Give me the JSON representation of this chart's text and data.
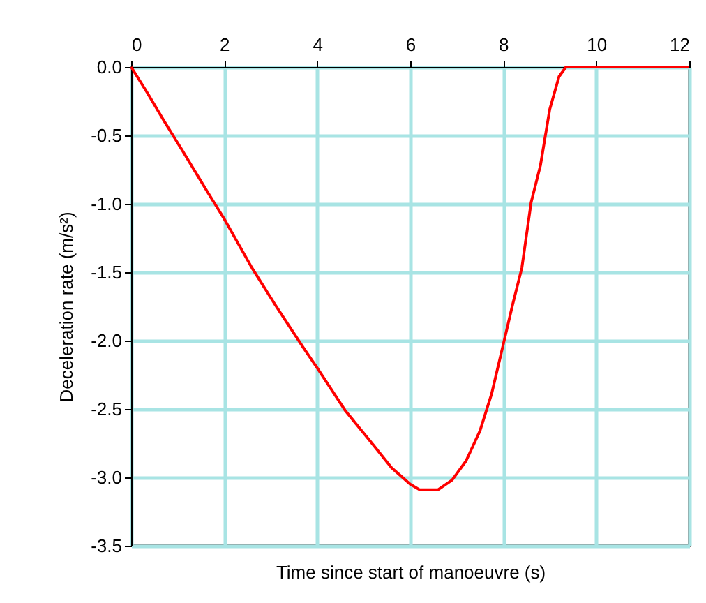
{
  "chart_data": {
    "type": "line",
    "xlabel": "Time since start of manoeuvre (s)",
    "ylabel": "Deceleration rate (m/s²)",
    "x": [
      0,
      0.35,
      0.7,
      1.1,
      1.6,
      2.0,
      2.6,
      3.1,
      3.7,
      4.0,
      4.6,
      5.2,
      5.6,
      6.0,
      6.2,
      6.6,
      6.9,
      7.2,
      7.5,
      7.75,
      8.0,
      8.2,
      8.4,
      8.6,
      8.8,
      9.0,
      9.2,
      9.35,
      12
    ],
    "series": [
      {
        "color": "#ff0000",
        "values": [
          0,
          -0.19,
          -0.39,
          -0.61,
          -0.89,
          -1.11,
          -1.47,
          -1.74,
          -2.05,
          -2.2,
          -2.51,
          -2.76,
          -2.93,
          -3.05,
          -3.09,
          -3.09,
          -3.02,
          -2.88,
          -2.66,
          -2.39,
          -2.03,
          -1.74,
          -1.47,
          -0.99,
          -0.72,
          -0.31,
          -0.07,
          0,
          0
        ]
      }
    ],
    "xlim": [
      0,
      12
    ],
    "xticks": [
      0,
      2,
      4,
      6,
      8,
      10,
      12
    ],
    "ylim": [
      -3.5,
      0
    ],
    "yticks": [
      {
        "value": 0,
        "label": "0.0"
      },
      {
        "value": -0.5,
        "label": "-0.5"
      },
      {
        "value": -1,
        "label": "-1.0"
      },
      {
        "value": -1.5,
        "label": "-1.5"
      },
      {
        "value": -2,
        "label": "-2.0"
      },
      {
        "value": -2.5,
        "label": "-2.5"
      },
      {
        "value": -3,
        "label": "-3.0"
      },
      {
        "value": -3.5,
        "label": "-3.5"
      }
    ],
    "grid": true,
    "marker": "none",
    "line_style": "solid"
  }
}
